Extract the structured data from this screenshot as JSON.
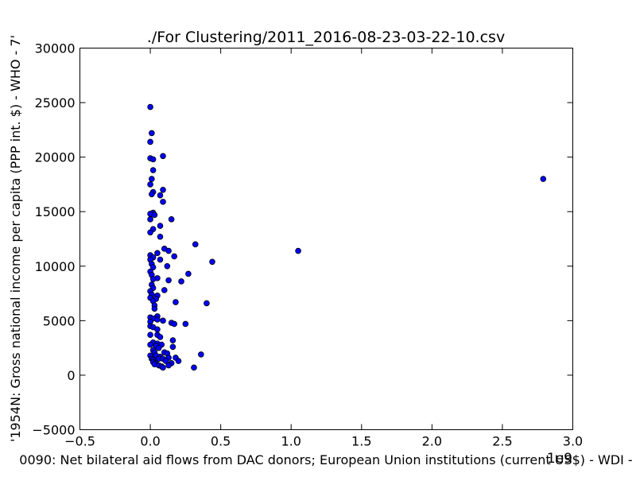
{
  "chart_data": {
    "type": "scatter",
    "title": "./For Clustering/2011_2016-08-23-03-22-10.csv",
    "xlabel": "0090: Net bilateral aid flows from DAC donors; European Union institutions  (current US$) - WDI -",
    "ylabel": "'1954N: Gross national income per capita (PPP int. $) - WHO - 7'",
    "x_offset_label": "1e9",
    "xlim": [
      -0.5,
      3.0
    ],
    "ylim": [
      -5000,
      30000
    ],
    "xticks": [
      -0.5,
      0.0,
      0.5,
      1.0,
      1.5,
      2.0,
      2.5,
      3.0
    ],
    "xtick_labels": [
      "−0.5",
      "0.0",
      "0.5",
      "1.0",
      "1.5",
      "2.0",
      "2.5",
      "3.0"
    ],
    "yticks": [
      -5000,
      0,
      5000,
      10000,
      15000,
      20000,
      25000,
      30000
    ],
    "ytick_labels": [
      "−5000",
      "0",
      "5000",
      "10000",
      "15000",
      "20000",
      "25000",
      "30000"
    ],
    "grid": false,
    "marker_color": "#0000ff",
    "points": [
      {
        "x": 0.0,
        "y": 24600
      },
      {
        "x": 0.01,
        "y": 22200
      },
      {
        "x": 0.0,
        "y": 21400
      },
      {
        "x": 0.09,
        "y": 20100
      },
      {
        "x": 0.0,
        "y": 19900
      },
      {
        "x": 0.02,
        "y": 19800
      },
      {
        "x": 0.02,
        "y": 18800
      },
      {
        "x": 0.01,
        "y": 18000
      },
      {
        "x": 0.0,
        "y": 17500
      },
      {
        "x": 0.09,
        "y": 17000
      },
      {
        "x": 0.02,
        "y": 16800
      },
      {
        "x": 0.01,
        "y": 16600
      },
      {
        "x": 0.07,
        "y": 16500
      },
      {
        "x": 0.09,
        "y": 15900
      },
      {
        "x": 0.02,
        "y": 14900
      },
      {
        "x": 0.0,
        "y": 14800
      },
      {
        "x": 0.03,
        "y": 14700
      },
      {
        "x": 0.0,
        "y": 14300
      },
      {
        "x": 0.15,
        "y": 14300
      },
      {
        "x": 0.07,
        "y": 13700
      },
      {
        "x": 0.02,
        "y": 13400
      },
      {
        "x": 0.0,
        "y": 13100
      },
      {
        "x": 0.07,
        "y": 12700
      },
      {
        "x": 0.32,
        "y": 12000
      },
      {
        "x": 0.1,
        "y": 11600
      },
      {
        "x": 0.13,
        "y": 11400
      },
      {
        "x": 1.05,
        "y": 11400
      },
      {
        "x": 0.05,
        "y": 11200
      },
      {
        "x": 0.0,
        "y": 11000
      },
      {
        "x": 0.02,
        "y": 10800
      },
      {
        "x": 0.17,
        "y": 10900
      },
      {
        "x": 0.0,
        "y": 10600
      },
      {
        "x": 0.07,
        "y": 10600
      },
      {
        "x": 0.44,
        "y": 10400
      },
      {
        "x": 0.01,
        "y": 10200
      },
      {
        "x": 0.02,
        "y": 9900
      },
      {
        "x": 0.12,
        "y": 10000
      },
      {
        "x": 0.0,
        "y": 9500
      },
      {
        "x": 0.01,
        "y": 9200
      },
      {
        "x": 0.27,
        "y": 9300
      },
      {
        "x": 0.05,
        "y": 8900
      },
      {
        "x": 0.02,
        "y": 8800
      },
      {
        "x": 0.13,
        "y": 8700
      },
      {
        "x": 0.22,
        "y": 8600
      },
      {
        "x": 0.01,
        "y": 8300
      },
      {
        "x": 0.02,
        "y": 8000
      },
      {
        "x": 0.1,
        "y": 7800
      },
      {
        "x": 0.0,
        "y": 7700
      },
      {
        "x": 0.01,
        "y": 7400
      },
      {
        "x": 0.05,
        "y": 7300
      },
      {
        "x": 0.04,
        "y": 7000
      },
      {
        "x": 0.0,
        "y": 7100
      },
      {
        "x": 0.02,
        "y": 6800
      },
      {
        "x": 0.18,
        "y": 6700
      },
      {
        "x": 0.4,
        "y": 6600
      },
      {
        "x": 0.03,
        "y": 6400
      },
      {
        "x": 0.03,
        "y": 6100
      },
      {
        "x": 0.0,
        "y": 5300
      },
      {
        "x": 0.05,
        "y": 5400
      },
      {
        "x": 0.02,
        "y": 5200
      },
      {
        "x": 0.05,
        "y": 5100
      },
      {
        "x": 0.09,
        "y": 5000
      },
      {
        "x": 0.0,
        "y": 4900
      },
      {
        "x": 0.15,
        "y": 4800
      },
      {
        "x": 0.17,
        "y": 4700
      },
      {
        "x": 0.25,
        "y": 4700
      },
      {
        "x": 0.0,
        "y": 4500
      },
      {
        "x": 0.02,
        "y": 4400
      },
      {
        "x": 0.05,
        "y": 4200
      },
      {
        "x": 0.0,
        "y": 3700
      },
      {
        "x": 0.05,
        "y": 3700
      },
      {
        "x": 0.07,
        "y": 3500
      },
      {
        "x": 0.16,
        "y": 3200
      },
      {
        "x": 0.02,
        "y": 3000
      },
      {
        "x": 0.05,
        "y": 2900
      },
      {
        "x": 0.0,
        "y": 2800
      },
      {
        "x": 0.08,
        "y": 2800
      },
      {
        "x": 0.04,
        "y": 2700
      },
      {
        "x": 0.16,
        "y": 2600
      },
      {
        "x": 0.06,
        "y": 2500
      },
      {
        "x": 0.02,
        "y": 2300
      },
      {
        "x": 0.03,
        "y": 2100
      },
      {
        "x": 0.1,
        "y": 2100
      },
      {
        "x": 0.12,
        "y": 2000
      },
      {
        "x": 0.36,
        "y": 1900
      },
      {
        "x": 0.0,
        "y": 1800
      },
      {
        "x": 0.04,
        "y": 1800
      },
      {
        "x": 0.07,
        "y": 1700
      },
      {
        "x": 0.13,
        "y": 1600
      },
      {
        "x": 0.18,
        "y": 1600
      },
      {
        "x": 0.01,
        "y": 1500
      },
      {
        "x": 0.06,
        "y": 1500
      },
      {
        "x": 0.09,
        "y": 1500
      },
      {
        "x": 0.02,
        "y": 1400
      },
      {
        "x": 0.11,
        "y": 1300
      },
      {
        "x": 0.2,
        "y": 1300
      },
      {
        "x": 0.02,
        "y": 1200
      },
      {
        "x": 0.04,
        "y": 1100
      },
      {
        "x": 0.15,
        "y": 1100
      },
      {
        "x": 0.03,
        "y": 1000
      },
      {
        "x": 0.06,
        "y": 900
      },
      {
        "x": 0.13,
        "y": 900
      },
      {
        "x": 0.08,
        "y": 800
      },
      {
        "x": 0.09,
        "y": 700
      },
      {
        "x": 0.31,
        "y": 700
      },
      {
        "x": 2.79,
        "y": 18000
      }
    ]
  }
}
